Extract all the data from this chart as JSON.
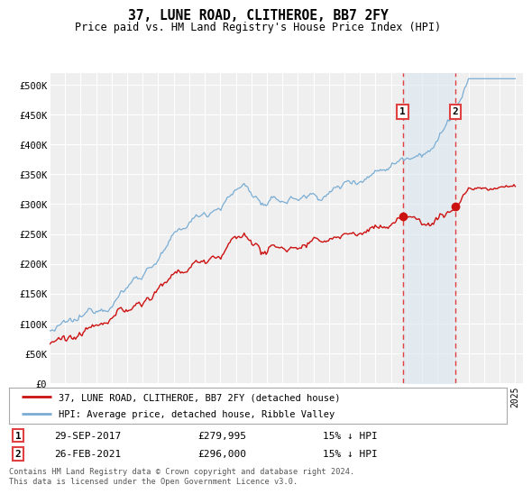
{
  "title": "37, LUNE ROAD, CLITHEROE, BB7 2FY",
  "subtitle": "Price paid vs. HM Land Registry's House Price Index (HPI)",
  "ylim": [
    0,
    520000
  ],
  "ytick_labels": [
    "£0",
    "£50K",
    "£100K",
    "£150K",
    "£200K",
    "£250K",
    "£300K",
    "£350K",
    "£400K",
    "£450K",
    "£500K"
  ],
  "background_color": "#ffffff",
  "plot_background_color": "#efefef",
  "grid_color": "#ffffff",
  "hpi_color": "#7aadd4",
  "price_color": "#cc1111",
  "vline_color": "#e04040",
  "shade_color": "#dde8f0",
  "annotation_1": {
    "date": "29-SEP-2017",
    "price": "£279,995",
    "hpi": "15% ↓ HPI",
    "label": "1"
  },
  "annotation_2": {
    "date": "26-FEB-2021",
    "price": "£296,000",
    "hpi": "15% ↓ HPI",
    "label": "2"
  },
  "legend_line1": "37, LUNE ROAD, CLITHEROE, BB7 2FY (detached house)",
  "legend_line2": "HPI: Average price, detached house, Ribble Valley",
  "footer": "Contains HM Land Registry data © Crown copyright and database right 2024.\nThis data is licensed under the Open Government Licence v3.0.",
  "transaction_1_year": 2017.75,
  "transaction_2_year": 2021.15,
  "transaction_1_price": 279995,
  "transaction_2_price": 296000,
  "hpi_scale": 0.85
}
